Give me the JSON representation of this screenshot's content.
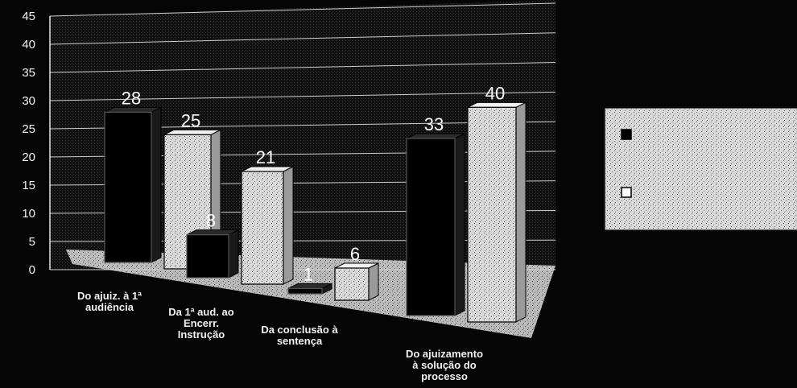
{
  "chart_data": {
    "type": "bar",
    "categories": [
      [
        "Do ajuiz. à 1ª",
        "audiência"
      ],
      [
        "Da 1ª aud. ao",
        "Encerr.",
        "Instrução"
      ],
      [
        "Da conclusão à",
        "sentença"
      ],
      [
        "Do ajuizamento",
        "à solução do",
        "processo"
      ]
    ],
    "series": [
      {
        "name": "",
        "color": "#000000",
        "values": [
          28,
          8,
          1,
          33
        ]
      },
      {
        "name": "",
        "color": "#e8e8e8",
        "values": [
          25,
          21,
          6,
          40
        ]
      }
    ],
    "ylim": [
      0,
      45
    ],
    "yticks": [
      0,
      5,
      10,
      15,
      20,
      25,
      30,
      35,
      40,
      45
    ],
    "xlabel": "",
    "ylabel": "",
    "title": "",
    "grid": true,
    "legend_position": "right"
  }
}
